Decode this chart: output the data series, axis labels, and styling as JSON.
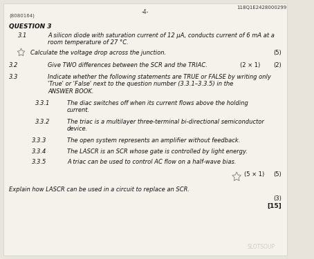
{
  "bg_color": "#e8e4dc",
  "paper_color": "#f5f2ec",
  "top_right_code": "118Q1E2428000299",
  "page_number": "-4-",
  "ref_code": "(8080164)",
  "question_title": "QUESTION 3",
  "q31_label": "3.1",
  "q31_text": "A silicon diode with saturation current of 12 μA, conducts current of 6 mA at a\nroom temperature of 27 °C.",
  "star1_text": "Calculate the voltage drop across the junction.",
  "star1_marks": "(5)",
  "q32_label": "3.2",
  "q32_text": "Give TWO differences between the SCR and the TRIAC.",
  "q32_marks_inner": "(2 × 1)",
  "q32_marks": "(2)",
  "q33_label": "3.3",
  "q33_text": "Indicate whether the following statements are TRUE or FALSE by writing only\n'True' or 'False' next to the question number (3.3.1–3.3.5) in the\nANSWER BOOK.",
  "q331_label": "3.3.1",
  "q331_text": "The diac switches off when its current flows above the holding\ncurrent.",
  "q332_label": "3.3.2",
  "q332_text": "The triac is a multilayer three-terminal bi-directional semiconductor\ndevice.",
  "q333_label": "3.3.3",
  "q333_text": "The open system represents an amplifier without feedback.",
  "q334_label": "3.3.4",
  "q334_text": "The LASCR is an SCR whose gate is controlled by light energy.",
  "q335_label": "3.3.5",
  "q335_text": "A triac can be used to control AC flow on a half-wave bias.",
  "q33_marks_inner": "(5 × 1)",
  "q33_marks": "(5)",
  "q34_text": "Explain how LASCR can be used in a circuit to replace an SCR.",
  "q34_marks": "(3)",
  "total_marks": "[15]",
  "watermark": "SLOTSOUP"
}
